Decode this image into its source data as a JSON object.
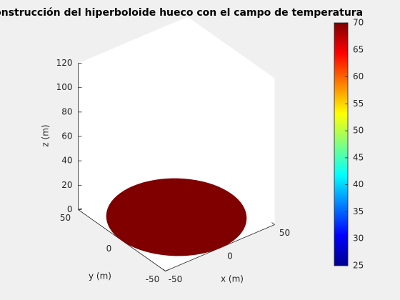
{
  "chart_data": {
    "type": "surface3d",
    "title": "Construcción del hiperboloide hueco con el campo de temperatura",
    "xlabel": "x (m)",
    "ylabel": "y (m)",
    "zlabel": "z (m)",
    "xlim": [
      -50,
      50
    ],
    "ylim": [
      -50,
      50
    ],
    "zlim": [
      0,
      120
    ],
    "xticks": [
      -50,
      0,
      50
    ],
    "yticks": [
      -50,
      0,
      50
    ],
    "zticks": [
      0,
      20,
      40,
      60,
      80,
      100,
      120
    ],
    "surface": {
      "radius": 50,
      "z": 0,
      "value": 70,
      "color": "#800000"
    },
    "colorbar": {
      "clim": [
        25,
        70
      ],
      "ticks": [
        25,
        30,
        35,
        40,
        45,
        50,
        55,
        60,
        65,
        70
      ]
    }
  }
}
